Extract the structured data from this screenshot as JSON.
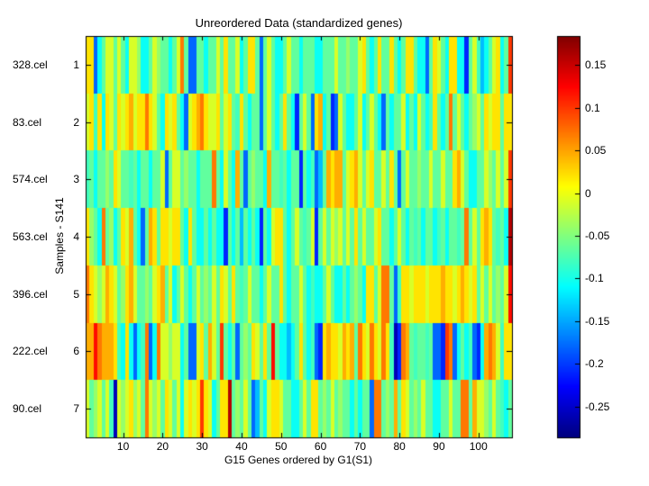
{
  "figure": {
    "title": "Unreordered Data (standardized genes)",
    "xlabel": "G15 Genes ordered by G1(S1)",
    "ylabel": "Samples - S141"
  },
  "y_axis": {
    "sample_labels": [
      "328.cel",
      "83.cel",
      "574.cel",
      "563.cel",
      "396.cel",
      "222.cel",
      "90.cel"
    ],
    "tick_labels": [
      "1",
      "2",
      "3",
      "4",
      "5",
      "6",
      "7"
    ]
  },
  "x_axis": {
    "tick_labels": [
      "10",
      "20",
      "30",
      "40",
      "50",
      "60",
      "70",
      "80",
      "90",
      "100"
    ]
  },
  "colorbar": {
    "ticks": [
      {
        "label": "0.15",
        "value": 0.15
      },
      {
        "label": "0.1",
        "value": 0.1
      },
      {
        "label": "0.05",
        "value": 0.05
      },
      {
        "label": "0",
        "value": 0
      },
      {
        "label": "-0.05",
        "value": -0.05
      },
      {
        "label": "-0.1",
        "value": -0.1
      },
      {
        "label": "-0.15",
        "value": -0.15
      },
      {
        "label": "-0.2",
        "value": -0.2
      },
      {
        "label": "-0.25",
        "value": -0.25
      }
    ]
  },
  "chart_data": {
    "type": "heatmap",
    "title": "Unreordered Data (standardized genes)",
    "xlabel": "G15 Genes ordered by G1(S1)",
    "ylabel": "Samples - S141",
    "colormap": "jet",
    "color_range": [
      -0.286,
      0.184
    ],
    "n_rows": 7,
    "n_cols": 108,
    "x_tick_values": [
      10,
      20,
      30,
      40,
      50,
      60,
      70,
      80,
      90,
      100
    ],
    "row_labels": [
      "328.cel",
      "83.cel",
      "574.cel",
      "563.cel",
      "396.cel",
      "222.cel",
      "90.cel"
    ],
    "series": [
      {
        "name": "328.cel",
        "values": [
          0.02,
          0.02,
          -0.18,
          -0.105,
          -0.065,
          -0.01,
          -0.01,
          -0.065,
          -0.01,
          -0.065,
          -0.105,
          -0.01,
          -0.01,
          -0.04,
          -0.105,
          -0.105,
          -0.065,
          -0.01,
          -0.04,
          -0.065,
          -0.065,
          -0.105,
          -0.065,
          -0.01,
          0.07,
          -0.065,
          -0.18,
          -0.18,
          -0.065,
          -0.065,
          -0.105,
          -0.065,
          -0.065,
          -0.01,
          -0.065,
          0.02,
          -0.065,
          -0.065,
          -0.01,
          -0.105,
          -0.065,
          0.02,
          0.02,
          -0.065,
          -0.18,
          -0.065,
          -0.01,
          -0.065,
          -0.105,
          -0.105,
          -0.065,
          -0.01,
          -0.065,
          -0.065,
          -0.105,
          -0.065,
          -0.065,
          -0.065,
          -0.105,
          -0.105,
          -0.065,
          -0.065,
          -0.065,
          -0.01,
          -0.065,
          -0.065,
          -0.04,
          -0.065,
          -0.065,
          -0.01,
          0.02,
          -0.065,
          -0.105,
          -0.065,
          0.02,
          -0.065,
          -0.065,
          0.02,
          -0.065,
          -0.105,
          -0.065,
          0.02,
          0.02,
          -0.065,
          -0.105,
          -0.105,
          -0.18,
          -0.065,
          0.02,
          -0.01,
          -0.065,
          -0.105,
          0.02,
          0.02,
          -0.105,
          -0.105,
          -0.21,
          -0.065,
          -0.01,
          -0.08,
          -0.14,
          -0.105,
          -0.065,
          -0.01,
          0.02,
          -0.105,
          -0.065,
          0.1
        ]
      },
      {
        "name": "83.cel",
        "values": [
          -0.01,
          0.02,
          -0.08,
          0.02,
          -0.105,
          0.02,
          -0.01,
          -0.065,
          0.02,
          -0.01,
          0.02,
          0.045,
          -0.01,
          0.02,
          0.02,
          0.07,
          0.02,
          -0.01,
          -0.065,
          -0.105,
          0.02,
          -0.01,
          0.02,
          -0.065,
          -0.105,
          -0.18,
          -0.01,
          0.02,
          0.045,
          0.07,
          0.02,
          -0.01,
          -0.01,
          0.02,
          -0.065,
          -0.01,
          0.02,
          -0.065,
          -0.08,
          0.02,
          -0.065,
          -0.105,
          -0.065,
          -0.065,
          -0.18,
          -0.065,
          -0.01,
          -0.065,
          -0.105,
          -0.065,
          0.02,
          -0.065,
          -0.105,
          -0.21,
          -0.065,
          -0.01,
          -0.065,
          -0.18,
          0.02,
          0.045,
          -0.105,
          -0.065,
          -0.21,
          -0.18,
          -0.01,
          -0.065,
          -0.105,
          -0.105,
          -0.065,
          -0.01,
          -0.105,
          -0.065,
          -0.01,
          -0.065,
          -0.105,
          -0.18,
          -0.065,
          -0.105,
          -0.065,
          -0.065,
          -0.01,
          -0.105,
          -0.065,
          -0.105,
          -0.01,
          -0.065,
          -0.105,
          -0.08,
          0.02,
          -0.065,
          -0.105,
          -0.065,
          0.07,
          -0.065,
          -0.01,
          -0.065,
          -0.105,
          -0.065,
          -0.04,
          -0.01,
          -0.065,
          0.02,
          -0.01,
          0.02,
          0.02,
          -0.065,
          0.02,
          0.02
        ]
      },
      {
        "name": "574.cel",
        "values": [
          -0.08,
          -0.065,
          -0.105,
          -0.065,
          -0.065,
          -0.04,
          -0.065,
          0.02,
          -0.01,
          -0.065,
          -0.065,
          -0.08,
          -0.065,
          -0.105,
          -0.065,
          -0.065,
          -0.105,
          -0.065,
          -0.065,
          -0.01,
          -0.18,
          -0.065,
          -0.01,
          -0.01,
          -0.065,
          -0.04,
          -0.065,
          -0.065,
          -0.105,
          -0.065,
          -0.065,
          -0.065,
          0.07,
          -0.065,
          -0.105,
          -0.01,
          -0.065,
          -0.105,
          0.045,
          -0.065,
          -0.18,
          -0.065,
          -0.04,
          -0.065,
          -0.065,
          -0.105,
          0.045,
          -0.065,
          -0.065,
          -0.08,
          -0.065,
          -0.105,
          -0.065,
          -0.065,
          -0.21,
          -0.065,
          -0.105,
          -0.08,
          -0.18,
          -0.14,
          -0.065,
          0.045,
          0.02,
          0.045,
          0.045,
          -0.065,
          -0.01,
          0.02,
          0.045,
          -0.01,
          -0.065,
          -0.01,
          0.02,
          -0.065,
          -0.065,
          -0.01,
          -0.065,
          0.02,
          -0.065,
          -0.18,
          -0.065,
          -0.01,
          -0.065,
          -0.065,
          -0.04,
          -0.065,
          -0.065,
          -0.01,
          -0.065,
          -0.065,
          -0.01,
          -0.065,
          -0.065,
          0.02,
          0.045,
          -0.01,
          -0.065,
          -0.105,
          -0.105,
          -0.065,
          -0.065,
          -0.01,
          -0.04,
          -0.065,
          -0.01,
          -0.065,
          -0.01,
          0.1
        ]
      },
      {
        "name": "563.cel",
        "values": [
          0.02,
          -0.04,
          -0.065,
          -0.105,
          0.07,
          -0.065,
          -0.04,
          -0.105,
          -0.065,
          0.02,
          -0.01,
          0.045,
          -0.065,
          -0.105,
          -0.18,
          -0.065,
          0.045,
          0.02,
          -0.065,
          0.02,
          0.02,
          -0.01,
          0.02,
          0.02,
          -0.065,
          -0.105,
          0.02,
          -0.065,
          -0.105,
          -0.105,
          -0.065,
          -0.105,
          -0.065,
          -0.105,
          -0.105,
          -0.21,
          -0.065,
          -0.105,
          -0.065,
          -0.14,
          -0.065,
          -0.105,
          -0.065,
          -0.105,
          -0.21,
          -0.065,
          -0.105,
          -0.01,
          0.02,
          0.02,
          -0.065,
          -0.105,
          -0.065,
          -0.01,
          -0.065,
          -0.08,
          -0.065,
          -0.01,
          -0.21,
          -0.065,
          -0.01,
          -0.065,
          -0.01,
          -0.04,
          -0.01,
          -0.065,
          -0.01,
          -0.065,
          0.02,
          -0.065,
          -0.01,
          -0.065,
          -0.065,
          -0.01,
          0.02,
          -0.065,
          -0.065,
          -0.105,
          -0.065,
          -0.01,
          -0.065,
          -0.105,
          -0.065,
          -0.08,
          -0.065,
          -0.105,
          -0.065,
          -0.065,
          -0.105,
          -0.08,
          -0.065,
          -0.105,
          -0.065,
          -0.065,
          -0.08,
          -0.065,
          0.07,
          -0.065,
          -0.01,
          -0.065,
          0.02,
          0.045,
          0.02,
          -0.065,
          -0.08,
          -0.065,
          -0.105,
          0.16
        ]
      },
      {
        "name": "396.cel",
        "values": [
          0.07,
          0.02,
          -0.01,
          -0.04,
          -0.01,
          0.045,
          0.02,
          -0.01,
          -0.065,
          -0.04,
          0.02,
          0.045,
          -0.01,
          -0.065,
          -0.065,
          -0.04,
          -0.065,
          -0.01,
          0.02,
          0.045,
          -0.065,
          -0.01,
          -0.105,
          -0.065,
          -0.01,
          -0.065,
          -0.105,
          -0.065,
          -0.01,
          -0.065,
          -0.04,
          -0.065,
          -0.01,
          -0.065,
          0.02,
          -0.01,
          -0.065,
          0.02,
          -0.065,
          -0.08,
          -0.065,
          -0.01,
          -0.065,
          -0.065,
          -0.105,
          -0.065,
          -0.01,
          -0.065,
          -0.065,
          0.02,
          -0.065,
          -0.105,
          -0.065,
          -0.065,
          -0.01,
          -0.065,
          -0.105,
          -0.08,
          -0.105,
          -0.105,
          -0.065,
          -0.01,
          -0.065,
          -0.105,
          -0.105,
          -0.065,
          -0.105,
          -0.065,
          -0.04,
          -0.065,
          -0.105,
          0.02,
          0.02,
          -0.065,
          -0.01,
          0.07,
          0.07,
          -0.065,
          -0.18,
          -0.08,
          0.02,
          0.02,
          -0.01,
          0.02,
          0.02,
          0.02,
          -0.01,
          0.02,
          0.02,
          0.02,
          0.045,
          0.02,
          0.02,
          -0.01,
          0.02,
          0.045,
          0.02,
          -0.01,
          0.02,
          -0.065,
          -0.01,
          -0.065,
          -0.01,
          -0.065,
          -0.04,
          -0.065,
          -0.01,
          0.12
        ]
      },
      {
        "name": "222.cel",
        "values": [
          0.045,
          0.045,
          0.12,
          0.07,
          0.045,
          0.045,
          0.045,
          0.02,
          -0.08,
          -0.105,
          0.02,
          -0.105,
          -0.18,
          -0.105,
          -0.08,
          0.07,
          -0.18,
          -0.105,
          0.07,
          -0.01,
          -0.01,
          -0.04,
          -0.01,
          -0.01,
          -0.105,
          -0.065,
          -0.18,
          -0.18,
          -0.01,
          0.02,
          -0.065,
          0.045,
          -0.01,
          -0.065,
          0.1,
          -0.065,
          -0.105,
          -0.065,
          -0.18,
          -0.065,
          -0.04,
          -0.065,
          0.02,
          -0.01,
          -0.065,
          0.02,
          -0.065,
          0.12,
          -0.065,
          -0.105,
          -0.105,
          -0.14,
          -0.105,
          -0.065,
          0.02,
          -0.065,
          -0.105,
          -0.08,
          -0.18,
          -0.21,
          0.02,
          0.045,
          0.02,
          0.02,
          -0.01,
          0.045,
          0.02,
          0.045,
          -0.065,
          0.07,
          0.02,
          -0.01,
          0.07,
          0.02,
          -0.01,
          0.07,
          0.02,
          -0.08,
          -0.26,
          -0.21,
          0.07,
          0.045,
          -0.065,
          -0.08,
          -0.065,
          -0.065,
          -0.08,
          -0.065,
          -0.18,
          -0.18,
          -0.21,
          0.1,
          0.07,
          -0.18,
          -0.105,
          -0.065,
          -0.105,
          -0.08,
          -0.18,
          -0.21,
          -0.105,
          0.045,
          0.07,
          0.045,
          -0.01,
          -0.08,
          0.02,
          0.02
        ]
      },
      {
        "name": "90.cel",
        "values": [
          -0.01,
          -0.065,
          -0.04,
          -0.01,
          -0.065,
          -0.01,
          -0.08,
          -0.26,
          -0.01,
          -0.04,
          -0.01,
          0.02,
          -0.04,
          -0.01,
          -0.065,
          0.07,
          -0.01,
          -0.04,
          -0.01,
          -0.065,
          0.02,
          -0.01,
          -0.065,
          -0.01,
          -0.105,
          -0.01,
          0.02,
          -0.01,
          0.02,
          0.1,
          0.02,
          -0.01,
          -0.105,
          -0.065,
          0.02,
          0.02,
          0.16,
          -0.065,
          -0.04,
          -0.065,
          -0.01,
          -0.065,
          -0.18,
          -0.14,
          -0.065,
          -0.105,
          -0.01,
          0.02,
          0.02,
          -0.01,
          -0.065,
          -0.065,
          -0.105,
          -0.105,
          -0.065,
          -0.01,
          -0.065,
          0.02,
          0.02,
          -0.065,
          -0.04,
          -0.065,
          -0.01,
          -0.065,
          -0.04,
          -0.065,
          -0.065,
          -0.105,
          -0.065,
          -0.105,
          -0.065,
          -0.065,
          -0.18,
          0.07,
          0.07,
          -0.065,
          -0.04,
          -0.065,
          0.045,
          -0.065,
          0.02,
          -0.01,
          -0.065,
          -0.04,
          -0.065,
          -0.01,
          -0.065,
          -0.065,
          -0.105,
          -0.105,
          -0.065,
          -0.065,
          -0.01,
          -0.065,
          -0.065,
          0.07,
          0.07,
          -0.065,
          0.045,
          -0.01,
          -0.01,
          -0.04,
          -0.065,
          -0.01,
          -0.065,
          -0.08,
          -0.105,
          -0.065
        ]
      }
    ]
  }
}
